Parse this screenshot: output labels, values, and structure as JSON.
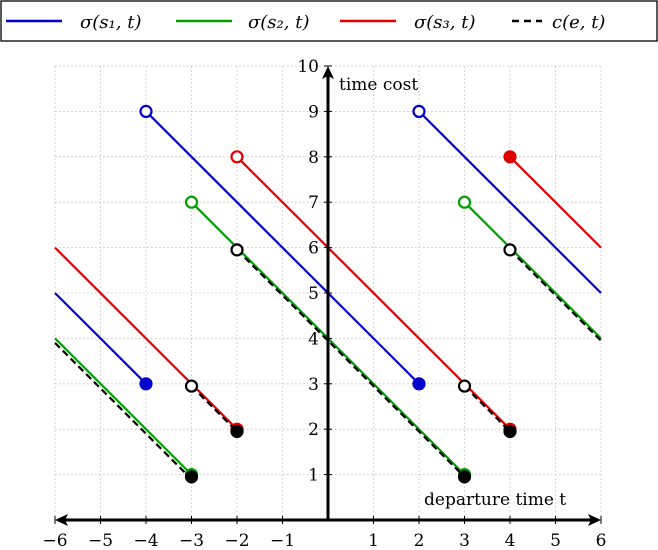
{
  "chart_data": {
    "type": "line",
    "title": "",
    "xlabel": "departure time t",
    "ylabel": "time cost",
    "xlim": [
      -6,
      6
    ],
    "ylim": [
      0,
      10
    ],
    "grid": true,
    "legend_position": "top",
    "x_ticks": [
      "−6",
      "−5",
      "−4",
      "−3",
      "−2",
      "−1",
      "1",
      "2",
      "3",
      "4",
      "5",
      "6"
    ],
    "y_ticks": [
      "1",
      "2",
      "3",
      "4",
      "5",
      "6",
      "7",
      "8",
      "9",
      "10"
    ],
    "legend": [
      {
        "label": "σ(s₁, t)",
        "color": "#0000cc",
        "dash": "solid"
      },
      {
        "label": "σ(s₂, t)",
        "color": "#00a000",
        "dash": "solid"
      },
      {
        "label": "σ(s₃, t)",
        "color": "#e00000",
        "dash": "solid"
      },
      {
        "label": "c(e, t)",
        "color": "#000000",
        "dash": "dashed"
      }
    ],
    "series": [
      {
        "name": "σ(s₁, t)",
        "color": "#0000cc",
        "dash": "solid",
        "segments": [
          {
            "x": [
              -6,
              -4
            ],
            "y": [
              5,
              3
            ]
          },
          {
            "x": [
              -4,
              2
            ],
            "y": [
              9,
              3
            ]
          },
          {
            "x": [
              2,
              6
            ],
            "y": [
              9,
              5
            ]
          }
        ],
        "points": [
          {
            "x": -4,
            "y": 3,
            "filled": true
          },
          {
            "x": -4,
            "y": 9,
            "filled": false
          },
          {
            "x": 2,
            "y": 3,
            "filled": true
          },
          {
            "x": 2,
            "y": 9,
            "filled": false
          }
        ]
      },
      {
        "name": "σ(s₂, t)",
        "color": "#00a000",
        "dash": "solid",
        "segments": [
          {
            "x": [
              -6,
              -3
            ],
            "y": [
              4,
              1
            ]
          },
          {
            "x": [
              -3,
              3
            ],
            "y": [
              7,
              1
            ]
          },
          {
            "x": [
              3,
              6
            ],
            "y": [
              7,
              4
            ]
          }
        ],
        "points": [
          {
            "x": -3,
            "y": 1,
            "filled": true
          },
          {
            "x": -3,
            "y": 7,
            "filled": false
          },
          {
            "x": 3,
            "y": 1,
            "filled": true
          },
          {
            "x": 3,
            "y": 7,
            "filled": false
          }
        ]
      },
      {
        "name": "σ(s₃, t)",
        "color": "#e00000",
        "dash": "solid",
        "segments": [
          {
            "x": [
              -6,
              -2
            ],
            "y": [
              6,
              2
            ]
          },
          {
            "x": [
              -2,
              4
            ],
            "y": [
              8,
              2
            ]
          },
          {
            "x": [
              4,
              6
            ],
            "y": [
              8,
              6
            ]
          }
        ],
        "points": [
          {
            "x": -2,
            "y": 2,
            "filled": true
          },
          {
            "x": -2,
            "y": 8,
            "filled": false
          },
          {
            "x": 4,
            "y": 2,
            "filled": true
          },
          {
            "x": 4,
            "y": 8,
            "filled": true
          }
        ]
      },
      {
        "name": "c(e, t)",
        "color": "#000000",
        "dash": "dashed",
        "segments": [
          {
            "x": [
              -6,
              -3
            ],
            "y": [
              3.9,
              0.9
            ]
          },
          {
            "x": [
              -3,
              -2
            ],
            "y": [
              2.95,
              1.95
            ]
          },
          {
            "x": [
              -2,
              3
            ],
            "y": [
              5.95,
              0.95
            ]
          },
          {
            "x": [
              3,
              4
            ],
            "y": [
              2.95,
              1.95
            ]
          },
          {
            "x": [
              4,
              6
            ],
            "y": [
              5.95,
              3.95
            ]
          }
        ],
        "points": [
          {
            "x": -3,
            "y": 0.95,
            "filled": true
          },
          {
            "x": -3,
            "y": 2.95,
            "filled": false
          },
          {
            "x": -2,
            "y": 1.95,
            "filled": true
          },
          {
            "x": -2,
            "y": 5.95,
            "filled": false
          },
          {
            "x": 3,
            "y": 0.95,
            "filled": true
          },
          {
            "x": 3,
            "y": 2.95,
            "filled": false
          },
          {
            "x": 4,
            "y": 1.95,
            "filled": true
          },
          {
            "x": 4,
            "y": 5.95,
            "filled": false
          }
        ]
      }
    ]
  }
}
